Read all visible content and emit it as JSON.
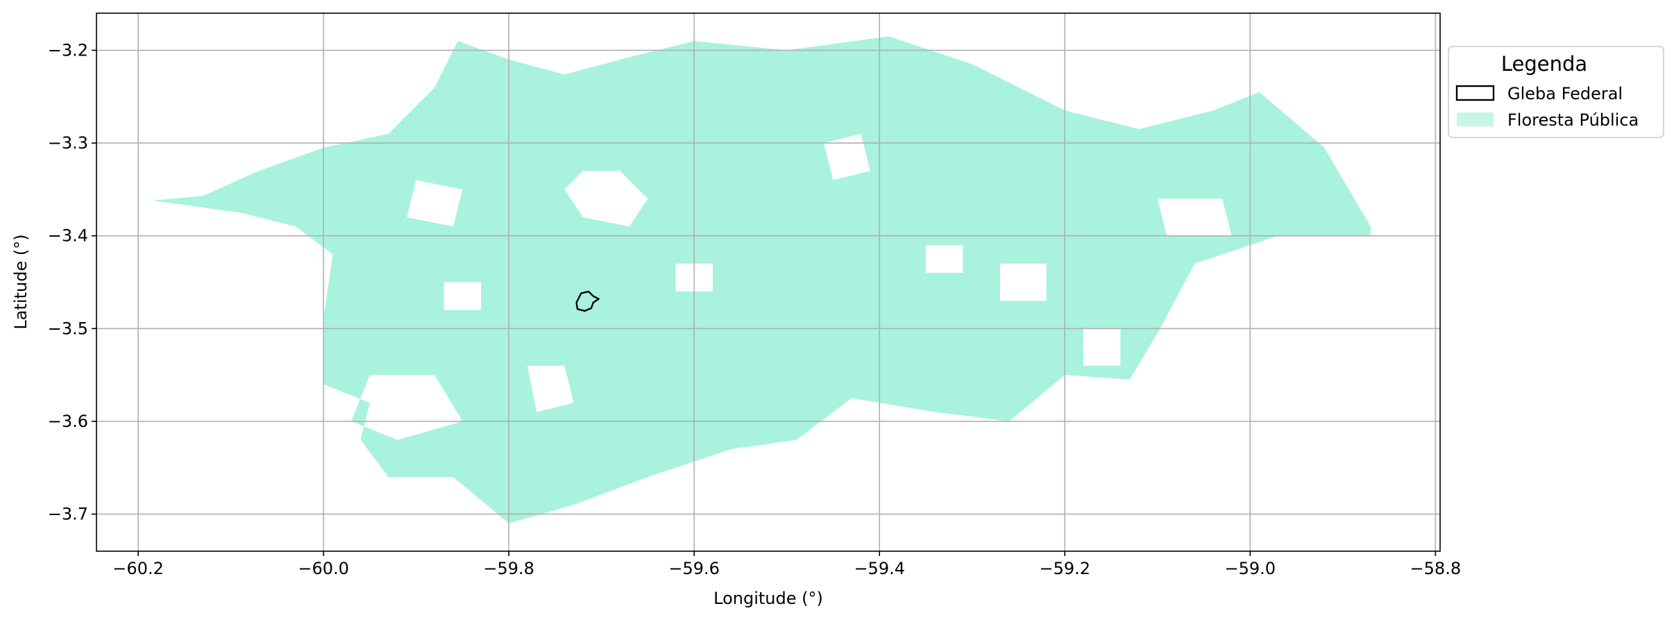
{
  "map": {
    "xlabel": "Longitude (°)",
    "ylabel": "Latitude (°)",
    "xlim": [
      -60.245,
      -58.795
    ],
    "ylim": [
      -3.74,
      -3.16
    ],
    "grid": true,
    "x_ticks": [
      -60.2,
      -60.0,
      -59.8,
      -59.6,
      -59.4,
      -59.2,
      -59.0,
      -58.8
    ],
    "y_ticks": [
      -3.2,
      -3.3,
      -3.4,
      -3.5,
      -3.6,
      -3.7
    ],
    "x_tick_labels": [
      "−60.2",
      "−60.0",
      "−59.8",
      "−59.6",
      "−59.4",
      "−59.2",
      "−59.0",
      "−58.8"
    ],
    "y_tick_labels": [
      "−3.2",
      "−3.3",
      "−3.4",
      "−3.5",
      "−3.6",
      "−3.7"
    ],
    "colors": {
      "forest_fill": "#a8f2de",
      "legend_forest_patch": "#c6f6e8",
      "gleba_edge": "#000000",
      "grid": "#b0b0b0"
    }
  },
  "legend": {
    "title": "Legenda",
    "placement": "outside-right-top",
    "items": [
      {
        "label": "Gleba Federal",
        "style": "outline"
      },
      {
        "label": "Floresta Pública",
        "style": "fill"
      }
    ]
  },
  "layers": {
    "floresta_publica": {
      "name": "Floresta Pública",
      "outline": [
        [
          -60.185,
          -3.362
        ],
        [
          -60.13,
          -3.357
        ],
        [
          -60.07,
          -3.33
        ],
        [
          -60.0,
          -3.305
        ],
        [
          -59.93,
          -3.29
        ],
        [
          -59.88,
          -3.24
        ],
        [
          -59.855,
          -3.19
        ],
        [
          -59.8,
          -3.21
        ],
        [
          -59.74,
          -3.226
        ],
        [
          -59.68,
          -3.21
        ],
        [
          -59.6,
          -3.19
        ],
        [
          -59.5,
          -3.2
        ],
        [
          -59.39,
          -3.185
        ],
        [
          -59.3,
          -3.215
        ],
        [
          -59.2,
          -3.265
        ],
        [
          -59.12,
          -3.285
        ],
        [
          -59.04,
          -3.265
        ],
        [
          -58.99,
          -3.245
        ],
        [
          -58.92,
          -3.305
        ],
        [
          -58.87,
          -3.39
        ],
        [
          -58.87,
          -3.4
        ],
        [
          -58.97,
          -3.4
        ],
        [
          -59.06,
          -3.43
        ],
        [
          -59.1,
          -3.505
        ],
        [
          -59.13,
          -3.555
        ],
        [
          -59.2,
          -3.55
        ],
        [
          -59.26,
          -3.6
        ],
        [
          -59.34,
          -3.59
        ],
        [
          -59.43,
          -3.575
        ],
        [
          -59.49,
          -3.62
        ],
        [
          -59.56,
          -3.63
        ],
        [
          -59.65,
          -3.66
        ],
        [
          -59.73,
          -3.69
        ],
        [
          -59.8,
          -3.71
        ],
        [
          -59.86,
          -3.66
        ],
        [
          -59.93,
          -3.66
        ],
        [
          -59.96,
          -3.62
        ],
        [
          -59.95,
          -3.58
        ],
        [
          -60.0,
          -3.56
        ],
        [
          -60.0,
          -3.49
        ],
        [
          -59.99,
          -3.42
        ],
        [
          -60.03,
          -3.39
        ],
        [
          -60.09,
          -3.375
        ],
        [
          -60.185,
          -3.362
        ]
      ],
      "gaps": [
        [
          [
            -59.72,
            -3.33
          ],
          [
            -59.68,
            -3.33
          ],
          [
            -59.65,
            -3.36
          ],
          [
            -59.67,
            -3.39
          ],
          [
            -59.72,
            -3.38
          ],
          [
            -59.74,
            -3.35
          ]
        ],
        [
          [
            -59.9,
            -3.34
          ],
          [
            -59.85,
            -3.35
          ],
          [
            -59.86,
            -3.39
          ],
          [
            -59.91,
            -3.38
          ]
        ],
        [
          [
            -59.95,
            -3.55
          ],
          [
            -59.88,
            -3.55
          ],
          [
            -59.85,
            -3.6
          ],
          [
            -59.92,
            -3.62
          ],
          [
            -59.97,
            -3.6
          ]
        ],
        [
          [
            -59.78,
            -3.54
          ],
          [
            -59.74,
            -3.54
          ],
          [
            -59.73,
            -3.58
          ],
          [
            -59.77,
            -3.59
          ]
        ],
        [
          [
            -59.1,
            -3.36
          ],
          [
            -59.03,
            -3.36
          ],
          [
            -59.02,
            -3.4
          ],
          [
            -59.09,
            -3.4
          ]
        ],
        [
          [
            -59.46,
            -3.3
          ],
          [
            -59.42,
            -3.29
          ],
          [
            -59.41,
            -3.33
          ],
          [
            -59.45,
            -3.34
          ]
        ],
        [
          [
            -59.27,
            -3.43
          ],
          [
            -59.22,
            -3.43
          ],
          [
            -59.22,
            -3.47
          ],
          [
            -59.27,
            -3.47
          ]
        ],
        [
          [
            -59.18,
            -3.5
          ],
          [
            -59.14,
            -3.5
          ],
          [
            -59.14,
            -3.54
          ],
          [
            -59.18,
            -3.54
          ]
        ],
        [
          [
            -59.62,
            -3.43
          ],
          [
            -59.58,
            -3.43
          ],
          [
            -59.58,
            -3.46
          ],
          [
            -59.62,
            -3.46
          ]
        ],
        [
          [
            -59.87,
            -3.45
          ],
          [
            -59.83,
            -3.45
          ],
          [
            -59.83,
            -3.48
          ],
          [
            -59.87,
            -3.48
          ]
        ],
        [
          [
            -59.35,
            -3.41
          ],
          [
            -59.31,
            -3.41
          ],
          [
            -59.31,
            -3.44
          ],
          [
            -59.35,
            -3.44
          ]
        ]
      ]
    },
    "gleba_federal": {
      "name": "Gleba Federal",
      "outline": [
        [
          -59.727,
          -3.472
        ],
        [
          -59.722,
          -3.462
        ],
        [
          -59.714,
          -3.46
        ],
        [
          -59.709,
          -3.465
        ],
        [
          -59.703,
          -3.468
        ],
        [
          -59.709,
          -3.472
        ],
        [
          -59.711,
          -3.478
        ],
        [
          -59.718,
          -3.481
        ],
        [
          -59.726,
          -3.479
        ],
        [
          -59.727,
          -3.472
        ]
      ]
    }
  }
}
